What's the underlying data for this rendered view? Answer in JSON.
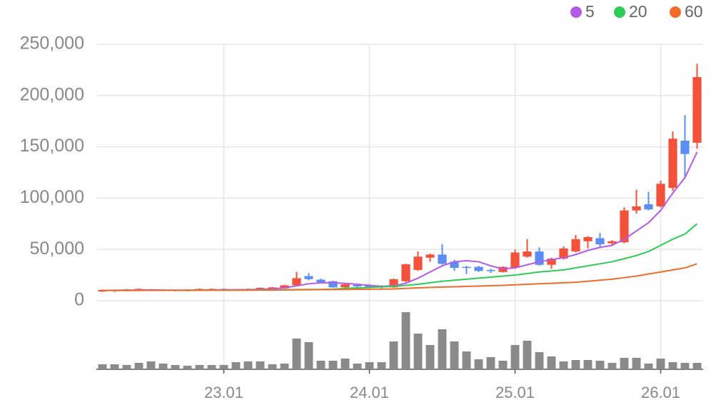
{
  "chart_data": {
    "type": "candlestick",
    "categories": [
      null,
      null,
      null,
      null,
      null,
      null,
      null,
      null,
      null,
      null,
      "23.01",
      null,
      null,
      null,
      null,
      null,
      null,
      null,
      null,
      null,
      null,
      null,
      "24.01",
      null,
      null,
      null,
      null,
      null,
      null,
      null,
      null,
      null,
      null,
      null,
      "25.01",
      null,
      null,
      null,
      null,
      null,
      null,
      null,
      null,
      null,
      null,
      null,
      "26.01",
      null,
      null,
      null
    ],
    "open": [
      9000,
      9500,
      9500,
      10000,
      11000,
      11000,
      10500,
      9500,
      10500,
      11000,
      11500,
      11000,
      10500,
      11000,
      11500,
      12000,
      15000,
      24000,
      20500,
      19000,
      13000,
      15500,
      15000,
      14000,
      13000,
      19000,
      30000,
      42000,
      45000,
      38000,
      33000,
      33000,
      30000,
      28000,
      32000,
      43000,
      48000,
      35000,
      41000,
      48000,
      58000,
      61000,
      56000,
      57000,
      88000,
      94000,
      92000,
      110000,
      156000,
      154000
    ],
    "high": [
      11000,
      11000,
      11500,
      12000,
      11500,
      11500,
      11000,
      11000,
      12000,
      12000,
      12000,
      11500,
      12000,
      13000,
      13500,
      15500,
      28000,
      27000,
      21500,
      19500,
      17000,
      16000,
      16000,
      15000,
      21500,
      36000,
      48000,
      46000,
      55000,
      40000,
      34000,
      34000,
      31000,
      33500,
      50000,
      60000,
      52000,
      42000,
      53000,
      64000,
      63000,
      66000,
      59000,
      91000,
      108000,
      106000,
      117000,
      165000,
      181000,
      231000
    ],
    "low": [
      8500,
      8500,
      9000,
      9500,
      10000,
      10000,
      9000,
      9000,
      10000,
      10000,
      10000,
      9500,
      10000,
      10500,
      11000,
      11500,
      14500,
      20000,
      17500,
      12500,
      12500,
      13000,
      12500,
      12000,
      12500,
      18000,
      29000,
      38000,
      35000,
      29000,
      26000,
      28000,
      27000,
      27500,
      31000,
      42000,
      34000,
      31000,
      40000,
      47000,
      51000,
      52000,
      54000,
      56000,
      85000,
      88000,
      91000,
      107000,
      120000,
      148000
    ],
    "close": [
      10500,
      10500,
      11000,
      11500,
      10500,
      10500,
      9500,
      10500,
      11500,
      11500,
      10500,
      10000,
      11500,
      12500,
      13000,
      15000,
      22000,
      21000,
      18000,
      13000,
      16000,
      14000,
      13000,
      13000,
      21000,
      35500,
      43000,
      45000,
      36000,
      32000,
      32000,
      29000,
      29000,
      33000,
      47000,
      48000,
      35000,
      41000,
      51000,
      60000,
      62000,
      55000,
      58000,
      88000,
      92000,
      89000,
      114000,
      158000,
      143000,
      218000
    ],
    "volume": [
      7,
      7,
      6,
      9,
      11,
      8,
      6,
      5,
      6,
      6,
      6,
      10,
      11,
      11,
      7,
      8,
      43,
      38,
      12,
      12,
      15,
      8,
      10,
      10,
      39,
      80,
      50,
      34,
      56,
      39,
      25,
      14,
      17,
      12,
      34,
      40,
      24,
      18,
      11,
      13,
      13,
      12,
      9,
      16,
      16,
      8,
      15,
      10,
      9,
      9
    ],
    "vlim": [
      0,
      80
    ],
    "up_color": "#f4513a",
    "down_color": "#5b8ef0",
    "volume_color": "#8a8a8a",
    "series": [
      {
        "name": "5",
        "color": "#b35be8",
        "values": [
          10000,
          10200,
          10300,
          10400,
          10500,
          10400,
          10300,
          10300,
          10400,
          10500,
          10600,
          10700,
          10800,
          11000,
          11500,
          12500,
          14500,
          16500,
          17500,
          17500,
          17000,
          16000,
          15000,
          14000,
          14500,
          17000,
          22000,
          28000,
          34000,
          38000,
          39000,
          38000,
          34000,
          31000,
          32000,
          35000,
          38000,
          40000,
          42000,
          45000,
          49000,
          52000,
          54000,
          60000,
          68000,
          76000,
          88000,
          105000,
          120000,
          145000
        ]
      },
      {
        "name": "20",
        "color": "#2ecc55",
        "values": [
          10000,
          10000,
          10000,
          10100,
          10100,
          10200,
          10200,
          10200,
          10300,
          10300,
          10300,
          10400,
          10400,
          10500,
          10500,
          10600,
          10800,
          11000,
          11000,
          11200,
          12000,
          12500,
          13000,
          13500,
          14000,
          15000,
          16000,
          17500,
          19000,
          20000,
          21000,
          22000,
          23000,
          24000,
          25000,
          26500,
          28000,
          29000,
          30000,
          32000,
          34000,
          36000,
          38000,
          41000,
          44000,
          48000,
          54000,
          60000,
          65000,
          75000
        ]
      },
      {
        "name": "60",
        "color": "#f26b2a",
        "values": [
          10000,
          10000,
          10000,
          10000,
          10100,
          10100,
          10100,
          10200,
          10200,
          10200,
          10300,
          10300,
          10300,
          10400,
          10400,
          10500,
          10600,
          10700,
          10800,
          10900,
          11000,
          11100,
          11200,
          11300,
          11500,
          12000,
          12500,
          13000,
          13300,
          13600,
          14000,
          14300,
          14600,
          15000,
          15500,
          16000,
          16500,
          17000,
          17500,
          18000,
          19000,
          20000,
          21000,
          22500,
          24000,
          26000,
          28000,
          30000,
          32000,
          36000
        ]
      }
    ],
    "ylim": [
      0,
      250000
    ],
    "yticks": [
      0,
      {
        "value": 50000,
        "label": "50,000"
      },
      {
        "value": 100000,
        "label": "100,000"
      },
      {
        "value": 150000,
        "label": "150,000"
      },
      {
        "value": 200000,
        "label": "200,000"
      },
      {
        "value": 250000,
        "label": "250,000"
      }
    ],
    "grid": true
  }
}
